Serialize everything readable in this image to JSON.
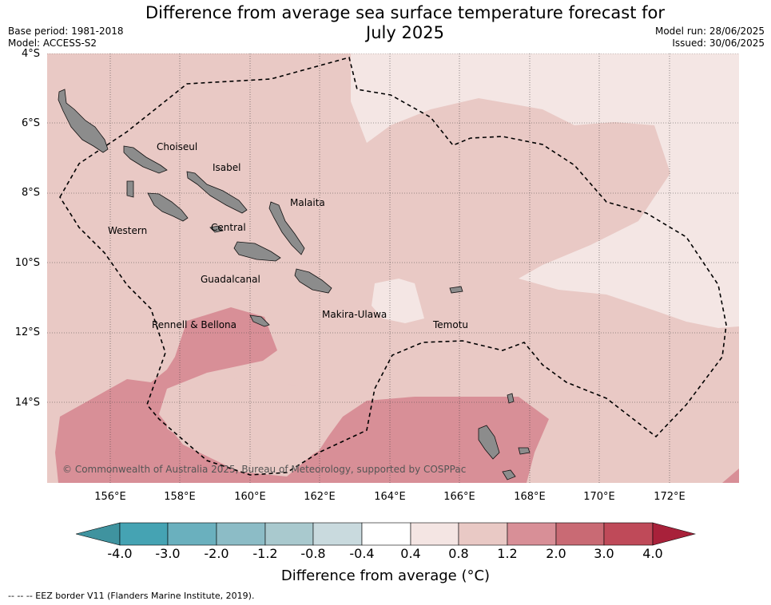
{
  "title_line1": "Difference from average sea surface temperature forecast for",
  "title_line2": "July 2025",
  "base_period": "Base period: 1981-2018",
  "model": "Model: ACCESS-S2",
  "model_run": "Model run: 28/06/2025",
  "issued": "Issued: 30/06/2025",
  "lat_labels": [
    "4°S",
    "6°S",
    "8°S",
    "10°S",
    "12°S",
    "14°S"
  ],
  "lon_labels": [
    "156°E",
    "158°E",
    "160°E",
    "162°E",
    "164°E",
    "166°E",
    "168°E",
    "170°E",
    "172°E"
  ],
  "regions": [
    "Choiseul",
    "Isabel",
    "Malaita",
    "Western",
    "Central",
    "Guadalcanal",
    "Makira-Ulawa",
    "Temotu",
    "Rennell & Bellona"
  ],
  "copyright": "© Commonwealth of Australia 2025, Bureau of Meteorology, supported by COSPPac",
  "colorbar": {
    "labels": [
      "-4.0",
      "-3.0",
      "-2.0",
      "-1.2",
      "-0.8",
      "-0.4",
      "0.4",
      "0.8",
      "1.2",
      "2.0",
      "3.0",
      "4.0"
    ],
    "colors": [
      "#3f939f",
      "#45a3b3",
      "#6ab0be",
      "#8cbcc6",
      "#a9c9ce",
      "#c9dade",
      "#ffffff",
      "#f4e5e3",
      "#e9c9c5",
      "#d88f97",
      "#c96a74",
      "#bf4a59",
      "#a8213a"
    ],
    "title": "Difference from average (°C)"
  },
  "footnote": "--  --  -- EEZ border V11 (Flanders Marine Institute, 2019).",
  "palette": {
    "land": "#8c8c8c",
    "anom_0_8_1_2": "#e9c9c5",
    "anom_0_4_0_8": "#f4e6e4",
    "anom_1_2_2_0": "#d88f97"
  }
}
